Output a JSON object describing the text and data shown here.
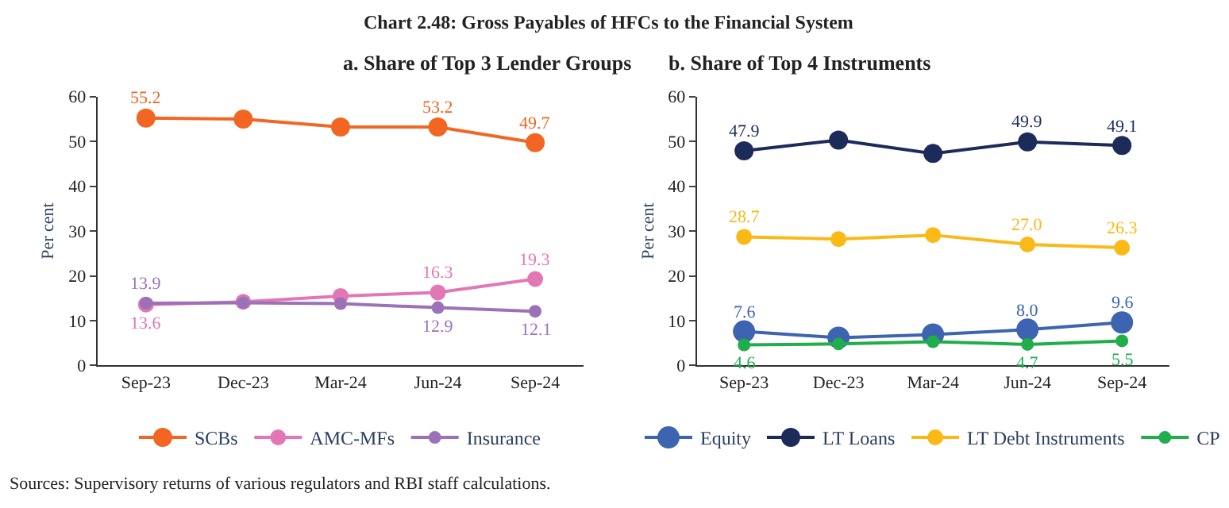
{
  "chart_data": [
    {
      "type": "line",
      "title": "a. Share of Top 3 Lender Groups",
      "ylabel": "Per cent",
      "annotations": [
        "Chart 2.48: Gross Payables of HFCs to the Financial System",
        "Sources: Supervisory returns of various regulators and RBI staff calculations."
      ],
      "categories": [
        "Sep-23",
        "Dec-23",
        "Mar-24",
        "Jun-24",
        "Sep-24"
      ],
      "series": [
        {
          "name": "SCBs",
          "color": "#f26522",
          "values": [
            55.2,
            55.0,
            53.2,
            53.2,
            49.7
          ],
          "value_labels": [
            "55.2",
            null,
            null,
            "53.2",
            "49.7"
          ]
        },
        {
          "name": "AMC-MFs",
          "color": "#e377b5",
          "values": [
            13.6,
            14.2,
            15.5,
            16.3,
            19.3
          ],
          "value_labels": [
            "13.6",
            null,
            null,
            "16.3",
            "19.3"
          ]
        },
        {
          "name": "Insurance",
          "color": "#9b72b8",
          "values": [
            13.9,
            14.0,
            13.8,
            12.9,
            12.1
          ],
          "value_labels": [
            "13.9",
            null,
            null,
            "12.9",
            "12.1"
          ]
        }
      ],
      "ylim": [
        0,
        60
      ],
      "yticks": [
        0,
        10,
        20,
        30,
        40,
        50,
        60
      ],
      "legend": "bottom",
      "marker": "circle",
      "line_style": "solid"
    },
    {
      "type": "line",
      "title": "b. Share of Top 4 Instruments",
      "ylabel": "Per cent",
      "categories": [
        "Sep-23",
        "Dec-23",
        "Mar-24",
        "Jun-24",
        "Sep-24"
      ],
      "series": [
        {
          "name": "Equity",
          "color": "#3c64b1",
          "values": [
            7.6,
            6.2,
            6.9,
            8.0,
            9.6
          ],
          "value_labels": [
            "7.6",
            null,
            null,
            "8.0",
            "9.6"
          ]
        },
        {
          "name": "LT Loans",
          "color": "#1c2b5a",
          "values": [
            47.9,
            50.3,
            47.3,
            49.9,
            49.1
          ],
          "value_labels": [
            "47.9",
            null,
            null,
            "49.9",
            "49.1"
          ]
        },
        {
          "name": "LT Debt Instruments",
          "color": "#fbb917",
          "values": [
            28.7,
            28.2,
            29.1,
            27.0,
            26.3
          ],
          "value_labels": [
            "28.7",
            null,
            null,
            "27.0",
            "26.3"
          ]
        },
        {
          "name": "CP",
          "color": "#1fae4b",
          "values": [
            4.6,
            4.8,
            5.3,
            4.7,
            5.5
          ],
          "value_labels": [
            "4.6",
            null,
            null,
            "4.7",
            "5.5"
          ]
        }
      ],
      "ylim": [
        0,
        60
      ],
      "yticks": [
        0,
        10,
        20,
        30,
        40,
        50,
        60
      ],
      "legend": "bottom",
      "marker": "circle",
      "line_style": "solid"
    }
  ]
}
